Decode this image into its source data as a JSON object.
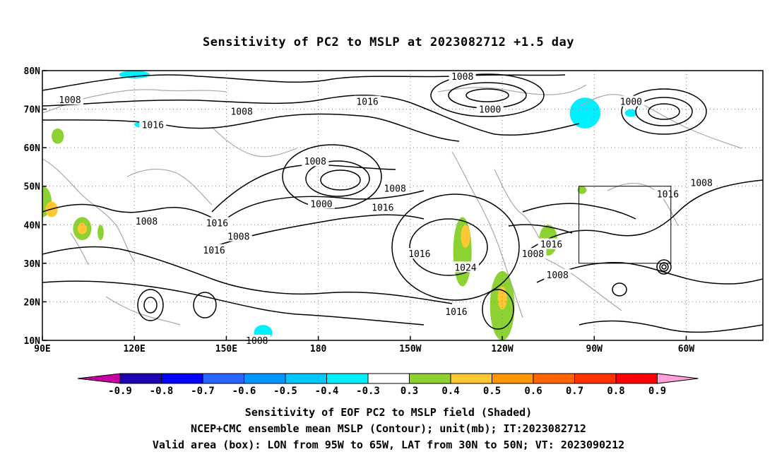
{
  "title": "Sensitivity of PC2 to MSLP at 2023082712 +1.5 day",
  "lat_labels": [
    "80N",
    "70N",
    "60N",
    "50N",
    "40N",
    "30N",
    "20N",
    "10N"
  ],
  "lon_labels": [
    "90E",
    "120E",
    "150E",
    "180",
    "150W",
    "120W",
    "90W",
    "60W"
  ],
  "contour_labels": [
    {
      "text": "1008",
      "lon": 99,
      "lat": 72.5
    },
    {
      "text": "1008",
      "lon": 155,
      "lat": 69.5
    },
    {
      "text": "1016",
      "lon": 196,
      "lat": 72
    },
    {
      "text": "1008",
      "lon": 227,
      "lat": 78.5
    },
    {
      "text": "1000",
      "lon": 236,
      "lat": 70
    },
    {
      "text": "1000",
      "lon": 282,
      "lat": 72
    },
    {
      "text": "1016",
      "lon": 126,
      "lat": 66
    },
    {
      "text": "1008",
      "lon": 179,
      "lat": 56.5
    },
    {
      "text": "1000",
      "lon": 181,
      "lat": 45.5
    },
    {
      "text": "1008",
      "lon": 205,
      "lat": 49.5
    },
    {
      "text": "1016",
      "lon": 201,
      "lat": 44.5
    },
    {
      "text": "1008",
      "lon": 124,
      "lat": 41
    },
    {
      "text": "1016",
      "lon": 147,
      "lat": 40.5
    },
    {
      "text": "1008",
      "lon": 154,
      "lat": 37
    },
    {
      "text": "1016",
      "lon": 146,
      "lat": 33.5
    },
    {
      "text": "1016",
      "lon": 213,
      "lat": 32.5
    },
    {
      "text": "1024",
      "lon": 228,
      "lat": 29
    },
    {
      "text": "1016",
      "lon": 225,
      "lat": 17.5
    },
    {
      "text": "1008",
      "lon": 250,
      "lat": 32.5
    },
    {
      "text": "1016",
      "lon": 256,
      "lat": 35
    },
    {
      "text": "1008",
      "lon": 258,
      "lat": 27
    },
    {
      "text": "1016",
      "lon": 294,
      "lat": 48
    },
    {
      "text": "1008",
      "lon": 305,
      "lat": 51
    },
    {
      "text": "1008",
      "lon": 160,
      "lat": 10
    }
  ],
  "colorbar": {
    "labels": [
      "-0.9",
      "-0.8",
      "-0.7",
      "-0.6",
      "-0.5",
      "-0.4",
      "-0.3",
      "0.3",
      "0.4",
      "0.5",
      "0.6",
      "0.7",
      "0.8",
      "0.9"
    ],
    "colors": [
      "#1e00b4",
      "#0000ff",
      "#2864ff",
      "#0096ff",
      "#00c8ff",
      "#00f0ff",
      "#ffffff",
      "#8cd232",
      "#ffc832",
      "#ff9600",
      "#ff6400",
      "#ff3200",
      "#ff0000"
    ],
    "low_end_color": "#c800a0",
    "high_end_color": "#ffa0dc"
  },
  "caption_line1": "Sensitivity of EOF PC2 to MSLP field (Shaded)",
  "caption_line2": "NCEP+CMC ensemble mean MSLP (Contour); unit(mb); IT:2023082712",
  "caption_line3": "Valid area (box): LON from 95W to 65W, LAT from 30N to 50N; VT: 2023090212",
  "valid_box": {
    "lon_min": 265,
    "lon_max": 295,
    "lat_min": 30,
    "lat_max": 50
  },
  "sensitivity_patches": [
    {
      "lon": 90,
      "lat": 46,
      "rx": 3,
      "ry": 4,
      "value": 0.35
    },
    {
      "lon": 93,
      "lat": 44,
      "rx": 2,
      "ry": 2,
      "value": 0.45
    },
    {
      "lon": 103,
      "lat": 39,
      "rx": 3,
      "ry": 3,
      "value": 0.35
    },
    {
      "lon": 103,
      "lat": 39,
      "rx": 1.5,
      "ry": 1.5,
      "value": 0.45
    },
    {
      "lon": 109,
      "lat": 38,
      "rx": 1,
      "ry": 2,
      "value": 0.35
    },
    {
      "lon": 95,
      "lat": 63,
      "rx": 2,
      "ry": 2,
      "value": 0.35
    },
    {
      "lon": 227,
      "lat": 33,
      "rx": 3,
      "ry": 9,
      "value": 0.35
    },
    {
      "lon": 228,
      "lat": 37,
      "rx": 1.5,
      "ry": 3,
      "value": 0.45
    },
    {
      "lon": 240,
      "lat": 19,
      "rx": 4,
      "ry": 9,
      "value": 0.35
    },
    {
      "lon": 240,
      "lat": 21,
      "rx": 1.5,
      "ry": 3,
      "value": 0.45
    },
    {
      "lon": 255,
      "lat": 36,
      "rx": 3,
      "ry": 4,
      "value": 0.35
    },
    {
      "lon": 266,
      "lat": 49,
      "rx": 1.5,
      "ry": 1,
      "value": 0.35
    },
    {
      "lon": 267,
      "lat": 69,
      "rx": 5,
      "ry": 4,
      "value": -0.35
    },
    {
      "lon": 282,
      "lat": 69,
      "rx": 2,
      "ry": 1,
      "value": -0.35
    },
    {
      "lon": 124,
      "lat": 66,
      "rx": 4,
      "ry": 1,
      "value": -0.35
    },
    {
      "lon": 120,
      "lat": 79,
      "rx": 5,
      "ry": 1,
      "value": -0.35
    },
    {
      "lon": 162,
      "lat": 12,
      "rx": 3,
      "ry": 2,
      "value": -0.35
    }
  ]
}
